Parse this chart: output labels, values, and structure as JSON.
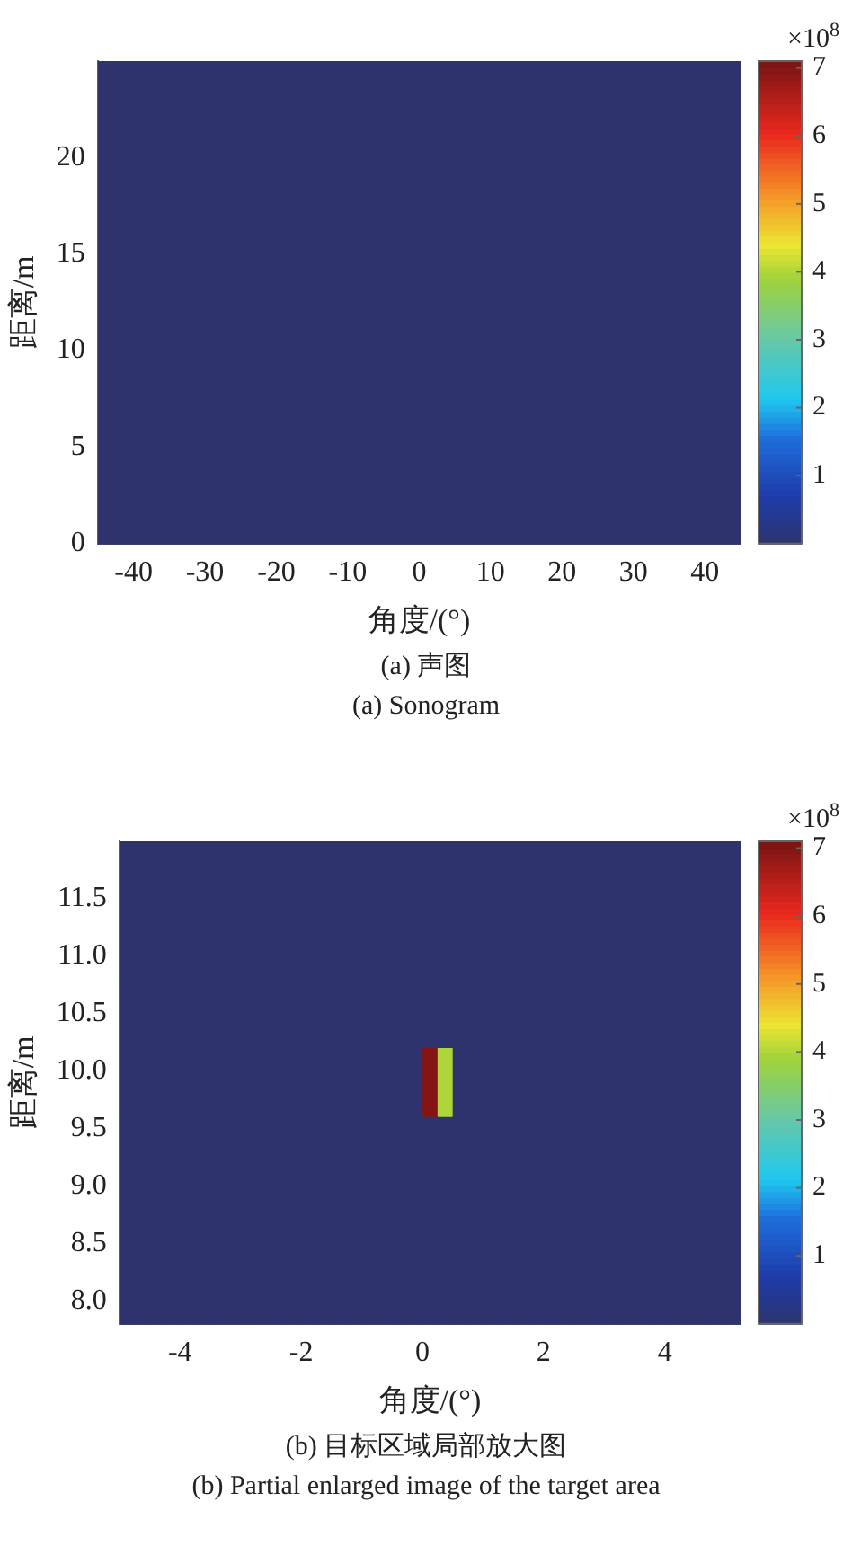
{
  "chart_data": [
    {
      "type": "heatmap",
      "xlabel": "角度/(°)",
      "ylabel": "距离/m",
      "clabel": "×10$^{8}$",
      "annotations": [
        "(a) 声图",
        "(a) Sonogram"
      ],
      "x": [
        -40,
        -30,
        -20,
        -10,
        0,
        10,
        20,
        30,
        40
      ],
      "y": [
        22.5,
        17.5,
        12.5,
        7.5,
        2.5
      ],
      "cells": [
        [
          0,
          0,
          0,
          0,
          0,
          0,
          0,
          0,
          0
        ],
        [
          0,
          0,
          0,
          0,
          0,
          0,
          0,
          0,
          0
        ],
        [
          0,
          0,
          0,
          0,
          0,
          0,
          0,
          0,
          0
        ],
        [
          0,
          0,
          0,
          0,
          0,
          0,
          0,
          0,
          0
        ],
        [
          0,
          0,
          0,
          0,
          0,
          0,
          0,
          0,
          0
        ]
      ],
      "xlim": [
        -45,
        45
      ],
      "xticks": [
        -40,
        -30,
        -20,
        -10,
        0,
        10,
        20,
        30,
        40
      ],
      "ylim": [
        0,
        25
      ],
      "yticks": [
        0,
        5,
        10,
        15,
        20
      ],
      "clim": [
        0,
        7.1
      ],
      "cticks": [
        1,
        2,
        3,
        4,
        5,
        6,
        7
      ]
    },
    {
      "type": "heatmap",
      "xlabel": "角度/(°)",
      "ylabel": "距离/m",
      "clabel": "×10$^{8}$",
      "annotations": [
        "(b) 目标区域局部放大图",
        "(b) Partial enlarged image of the target area"
      ],
      "x": [
        -4.875,
        -4.625,
        -4.375,
        -4.125,
        -3.875,
        -3.625,
        -3.375,
        -3.125,
        -2.875,
        -2.625,
        -2.375,
        -2.125,
        -1.875,
        -1.625,
        -1.375,
        -1.125,
        -0.875,
        -0.625,
        -0.375,
        -0.125,
        0.125,
        0.375,
        0.625,
        0.875,
        1.125,
        1.375,
        1.625,
        1.875,
        2.125,
        2.375,
        2.625,
        2.875,
        3.125,
        3.375,
        3.625,
        3.875,
        4.125,
        4.375,
        4.625,
        4.875,
        5.125
      ],
      "y": [
        11.7,
        11.1,
        10.5,
        9.9,
        9.3,
        8.7,
        8.1
      ],
      "cells": [
        [
          0,
          0,
          0,
          0,
          0,
          0,
          0,
          0,
          0,
          0,
          0,
          0,
          0,
          0,
          0,
          0,
          0,
          0,
          0,
          0,
          0,
          0,
          0,
          0,
          0,
          0,
          0,
          0,
          0,
          0,
          0,
          0,
          0,
          0,
          0,
          0,
          0,
          0,
          0,
          0,
          0
        ],
        [
          0,
          0,
          0,
          0,
          0,
          0,
          0,
          0,
          0,
          0,
          0,
          0,
          0,
          0,
          0,
          0,
          0,
          0,
          0,
          0,
          0,
          0,
          0,
          0,
          0,
          0,
          0,
          0,
          0,
          0,
          0,
          0,
          0,
          0,
          0,
          0,
          0,
          0,
          0,
          0,
          0
        ],
        [
          0,
          0,
          0,
          0,
          0,
          0,
          0,
          0,
          0,
          0,
          0,
          0,
          0,
          0,
          0,
          0,
          0,
          0,
          0,
          0,
          0,
          0,
          0,
          0,
          0,
          0,
          0,
          0,
          0,
          0,
          0,
          0,
          0,
          0,
          0,
          0,
          0,
          0,
          0,
          0,
          0
        ],
        [
          0,
          0,
          0,
          0,
          0,
          0,
          0,
          0,
          0,
          0,
          0,
          0,
          0,
          0,
          0,
          0,
          0,
          0,
          0,
          0,
          7,
          4,
          0,
          0,
          0,
          0,
          0,
          0,
          0,
          0,
          0,
          0,
          0,
          0,
          0,
          0,
          0,
          0,
          0,
          0,
          0
        ],
        [
          0,
          0,
          0,
          0,
          0,
          0,
          0,
          0,
          0,
          0,
          0,
          0,
          0,
          0,
          0,
          0,
          0,
          0,
          0,
          0,
          0,
          0,
          0,
          0,
          0,
          0,
          0,
          0,
          0,
          0,
          0,
          0,
          0,
          0,
          0,
          0,
          0,
          0,
          0,
          0,
          0
        ],
        [
          0,
          0,
          0,
          0,
          0,
          0,
          0,
          0,
          0,
          0,
          0,
          0,
          0,
          0,
          0,
          0,
          0,
          0,
          0,
          0,
          0,
          0,
          0,
          0,
          0,
          0,
          0,
          0,
          0,
          0,
          0,
          0,
          0,
          0,
          0,
          0,
          0,
          0,
          0,
          0,
          0
        ],
        [
          0,
          0,
          0,
          0,
          0,
          0,
          0,
          0,
          0,
          0,
          0,
          0,
          0,
          0,
          0,
          0,
          0,
          0,
          0,
          0,
          0,
          0,
          0,
          0,
          0,
          0,
          0,
          0,
          0,
          0,
          0,
          0,
          0,
          0,
          0,
          0,
          0,
          0,
          0,
          0,
          0
        ]
      ],
      "xlim": [
        -5,
        5.25
      ],
      "xticks": [
        -4,
        -2,
        0,
        2,
        4
      ],
      "ylim": [
        7.8,
        12
      ],
      "yticks": [
        {
          "value": 8,
          "label": "8.0"
        },
        {
          "value": 8.5,
          "label": "8.5"
        },
        {
          "value": 9,
          "label": "9.0"
        },
        {
          "value": 9.5,
          "label": "9.5"
        },
        {
          "value": 10,
          "label": "10.0"
        },
        {
          "value": 10.5,
          "label": "10.5"
        },
        {
          "value": 11,
          "label": "11.0"
        },
        {
          "value": 11.5,
          "label": "11.5"
        }
      ],
      "clim": [
        0,
        7.1
      ],
      "cticks": [
        1,
        2,
        3,
        4,
        5,
        6,
        7
      ]
    }
  ]
}
